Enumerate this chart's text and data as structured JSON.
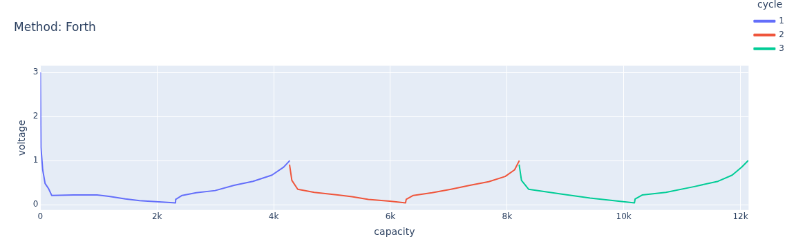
{
  "chart_data": {
    "type": "line",
    "title": "Method: Forth",
    "xlabel": "capacity",
    "ylabel": "voltage",
    "legend_title": "cycle",
    "legend": "right",
    "grid": true,
    "xlim": [
      0,
      12140
    ],
    "ylim": [
      -0.12,
      3.15
    ],
    "xticks": [
      0,
      {
        "value": 2000,
        "label": "2k"
      },
      {
        "value": 4000,
        "label": "4k"
      },
      {
        "value": 6000,
        "label": "6k"
      },
      {
        "value": 8000,
        "label": "8k"
      },
      {
        "value": 10000,
        "label": "10k"
      },
      {
        "value": 12000,
        "label": "12k"
      }
    ],
    "yticks": [
      0,
      1,
      2,
      3
    ],
    "series": [
      {
        "name": "1",
        "color": "#636efa",
        "x": [
          0,
          10,
          40,
          81,
          142,
          194,
          567,
          972,
          1174,
          1457,
          1700,
          1984,
          2316,
          2320,
          2429,
          2672,
          2996,
          3320,
          3644,
          3968,
          4170,
          4275
        ],
        "values": [
          3.0,
          1.3,
          0.79,
          0.48,
          0.36,
          0.21,
          0.22,
          0.22,
          0.19,
          0.13,
          0.09,
          0.07,
          0.04,
          0.12,
          0.21,
          0.27,
          0.32,
          0.44,
          0.53,
          0.67,
          0.85,
          1.0
        ]
      },
      {
        "name": "2",
        "color": "#ef553b",
        "x": [
          4271,
          4311,
          4412,
          4695,
          5099,
          5341,
          5624,
          5988,
          6259,
          6271,
          6392,
          6715,
          7038,
          7362,
          7685,
          7968,
          8129,
          8210
        ],
        "values": [
          0.91,
          0.55,
          0.35,
          0.28,
          0.22,
          0.18,
          0.12,
          0.08,
          0.04,
          0.12,
          0.21,
          0.27,
          0.35,
          0.44,
          0.52,
          0.64,
          0.79,
          1.0
        ]
      },
      {
        "name": "3",
        "color": "#00cc96",
        "x": [
          8207,
          8247,
          8369,
          8937,
          9424,
          9830,
          10183,
          10195,
          10316,
          10722,
          11209,
          11615,
          11858,
          12020,
          12134
        ],
        "values": [
          0.91,
          0.55,
          0.35,
          0.24,
          0.15,
          0.09,
          0.04,
          0.13,
          0.22,
          0.28,
          0.41,
          0.53,
          0.67,
          0.85,
          1.0
        ]
      }
    ]
  }
}
